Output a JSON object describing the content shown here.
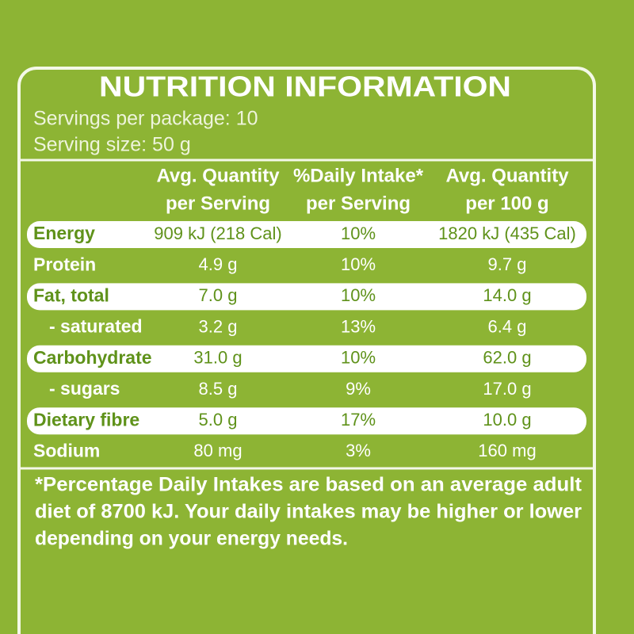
{
  "title": "NUTRITION INFORMATION",
  "servings_per_package": "Servings per package: 10",
  "serving_size": "Serving size: 50 g",
  "table": {
    "headers": [
      [
        "Avg. Quantity",
        "per Serving"
      ],
      [
        "%Daily Intake*",
        "per Serving"
      ],
      [
        "Avg. Quantity",
        "per 100 g"
      ]
    ],
    "rows": [
      [
        "Energy",
        "909 kJ (218 Cal)",
        "10%",
        "1820 kJ (435 Cal)"
      ],
      [
        "Protein",
        "4.9 g",
        "10%",
        "9.7 g"
      ],
      [
        "Fat, total",
        "7.0 g",
        "10%",
        "14.0 g"
      ],
      [
        "- saturated",
        "3.2 g",
        "13%",
        "6.4 g"
      ],
      [
        "Carbohydrate",
        "31.0 g",
        "10%",
        "62.0 g"
      ],
      [
        "- sugars",
        "8.5 g",
        "9%",
        "17.0 g"
      ],
      [
        "Dietary fibre",
        "5.0 g",
        "17%",
        "10.0 g"
      ],
      [
        "Sodium",
        "80 mg",
        "3%",
        "160 mg"
      ]
    ]
  },
  "footnote": [
    "*Percentage Daily Intakes are based on an average adult",
    "diet of 8700 kJ. Your daily intakes may be higher or lower",
    "depending on your energy needs."
  ]
}
